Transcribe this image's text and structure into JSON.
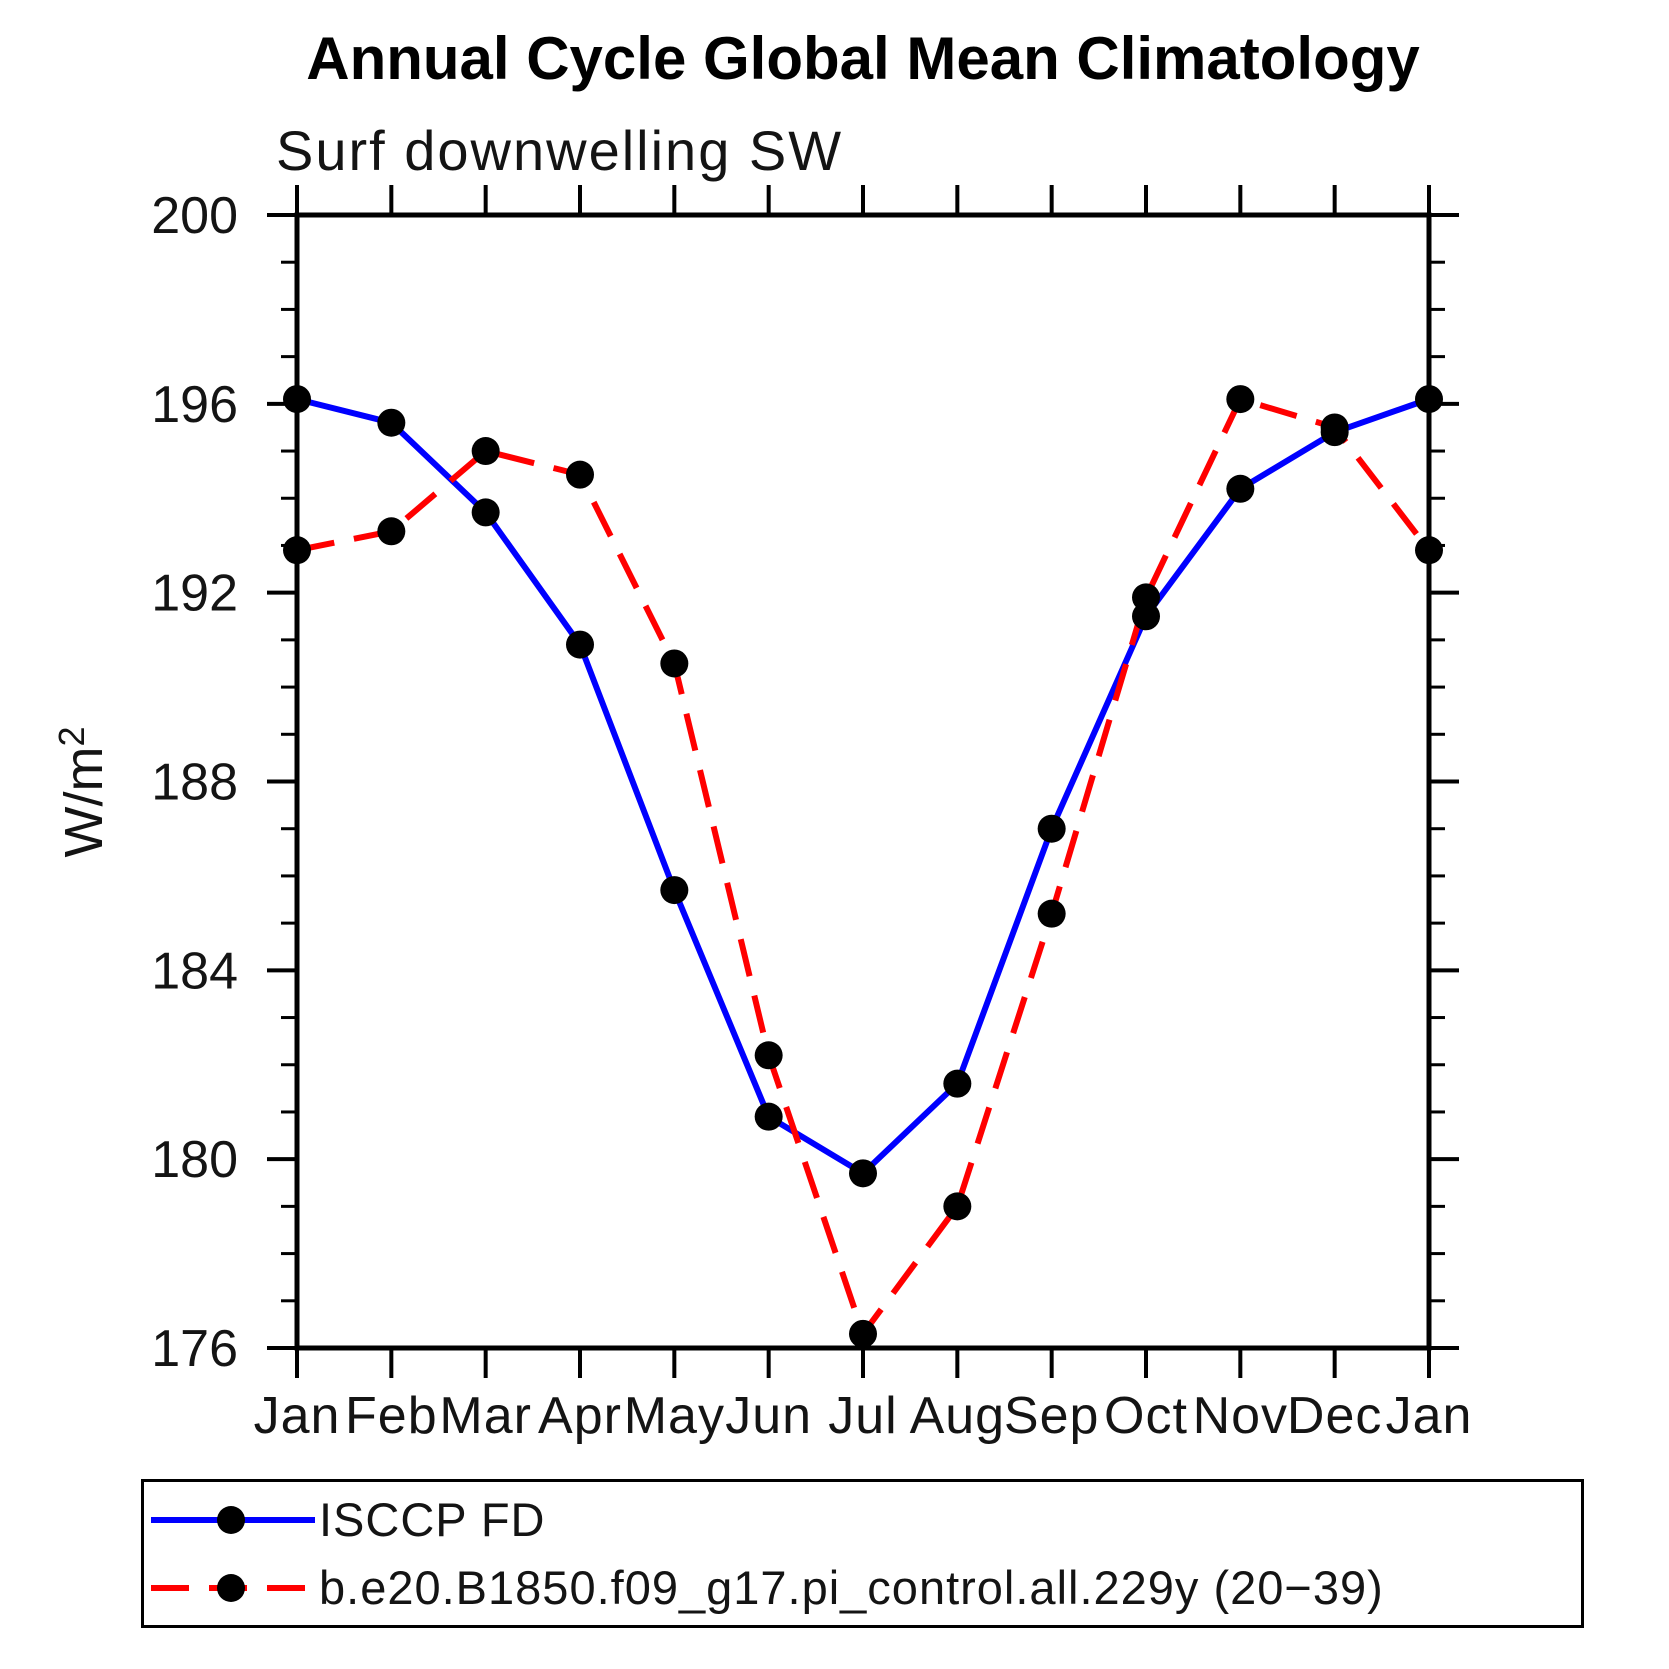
{
  "page": {
    "background": "#ffffff"
  },
  "chart_data": {
    "type": "line",
    "title": "Annual Cycle Global Mean Climatology",
    "subtitle": "Surf downwelling SW",
    "ylabel": "W/m²",
    "xlabel": "",
    "categories": [
      "Jan",
      "Feb",
      "Mar",
      "Apr",
      "May",
      "Jun",
      "Jul",
      "Aug",
      "Sep",
      "Oct",
      "Nov",
      "Dec",
      "Jan"
    ],
    "ylim": [
      176,
      200
    ],
    "ytick_major": [
      176,
      180,
      184,
      188,
      192,
      196,
      200
    ],
    "ytick_minor_step": 1,
    "grid": false,
    "legend_position": "bottom",
    "axis_color": "#000000",
    "marker_color": "#000000",
    "series": [
      {
        "name": "ISCCP FD",
        "color": "#0000ff",
        "line_style": "solid",
        "marker": "circle",
        "values": [
          196.1,
          195.6,
          193.7,
          190.9,
          185.7,
          180.9,
          179.7,
          181.6,
          187.0,
          191.5,
          194.2,
          195.4,
          196.1
        ]
      },
      {
        "name": "b.e20.B1850.f09_g17.pi_control.all.229y (20−39)",
        "color": "#ff0000",
        "line_style": "dashed",
        "marker": "circle",
        "values": [
          192.9,
          193.3,
          195.0,
          194.5,
          190.5,
          182.2,
          176.3,
          179.0,
          185.2,
          191.9,
          196.1,
          195.5,
          192.9
        ]
      }
    ]
  }
}
